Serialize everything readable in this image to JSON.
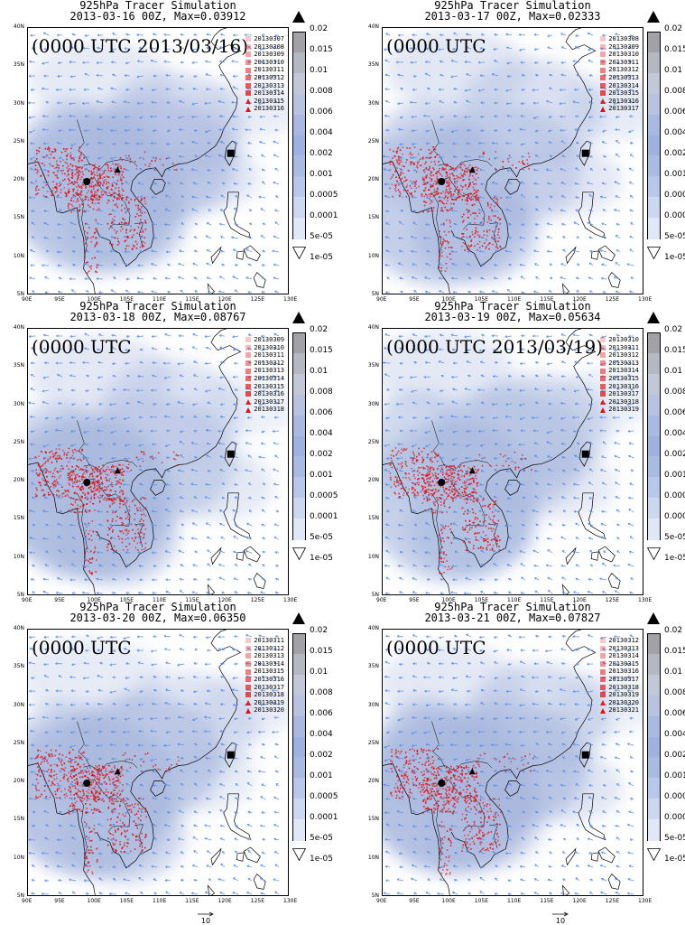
{
  "panels": [
    {
      "title1": "925hPa Tracer Simulation",
      "title2": "2013-03-16 00Z, Max=0.03912",
      "stamp": "(0000 UTC 2013/03/16)",
      "dates": [
        "20130307",
        "20130308",
        "20130309",
        "20130310",
        "20130311",
        "20130312",
        "20130313",
        "20130314",
        "20130315",
        "20130316"
      ]
    },
    {
      "title1": "925hPa Tracer Simulation",
      "title2": "2013-03-17 00Z, Max=0.02333",
      "stamp": "(0000 UTC",
      "dates": [
        "20130308",
        "20130309",
        "20130310",
        "20130311",
        "20130312",
        "20130313",
        "20130314",
        "20130315",
        "20130316",
        "20130317"
      ]
    },
    {
      "title1": "925hPa Tracer Simulation",
      "title2": "2013-03-18 00Z, Max=0.08767",
      "stamp": "(0000 UTC",
      "dates": [
        "20130309",
        "20130310",
        "20130311",
        "20130312",
        "20130313",
        "20130314",
        "20130315",
        "20130316",
        "20130317",
        "20130318"
      ]
    },
    {
      "title1": "925hPa Tracer Simulation",
      "title2": "2013-03-19 00Z, Max=0.05634",
      "stamp": "(0000 UTC 2013/03/19)",
      "dates": [
        "20130310",
        "20130311",
        "20130312",
        "20130313",
        "20130314",
        "20130315",
        "20130316",
        "20130317",
        "20130318",
        "20130319"
      ]
    },
    {
      "title1": "925hPa Tracer Simulation",
      "title2": "2013-03-20 00Z, Max=0.06350",
      "stamp": "(0000 UTC",
      "dates": [
        "20130311",
        "20130312",
        "20130313",
        "20130314",
        "20130315",
        "20130316",
        "20130317",
        "20130318",
        "20130319",
        "20130320"
      ]
    },
    {
      "title1": "925hPa Tracer Simulation",
      "title2": "2013-03-21 00Z, Max=0.07827",
      "stamp": "(0000 UTC",
      "dates": [
        "20130312",
        "20130313",
        "20130314",
        "20130315",
        "20130316",
        "20130317",
        "20130318",
        "20130319",
        "20130320",
        "20130321"
      ]
    }
  ],
  "lat_labels": [
    "40N",
    "35N",
    "30N",
    "25N",
    "20N",
    "15N",
    "10N",
    "5N"
  ],
  "lon_labels": [
    "90E",
    "95E",
    "100E",
    "105E",
    "110E",
    "115E",
    "120E",
    "125E",
    "130E"
  ],
  "colorbar_labels": [
    "0.02",
    "0.015",
    "0.01",
    "0.008",
    "0.006",
    "0.004",
    "0.002",
    "0.001",
    "0.0005",
    "0.0001",
    "5e-05",
    "1e-05"
  ],
  "colorbar_colors": [
    "#8a8a8a",
    "#a2a2a6",
    "#b5b8c0",
    "#c2c8d8",
    "#b7c3e0",
    "#a9b9e2",
    "#9fb1de",
    "#a9bbe3",
    "#b9c8ea",
    "#ccd7f0",
    "#e0e7f6",
    "#ffffff"
  ],
  "reference_vector": "10",
  "colors": {
    "wind": "#5a8fe8",
    "fire": "#e01010",
    "shade": "#a9b8de"
  }
}
